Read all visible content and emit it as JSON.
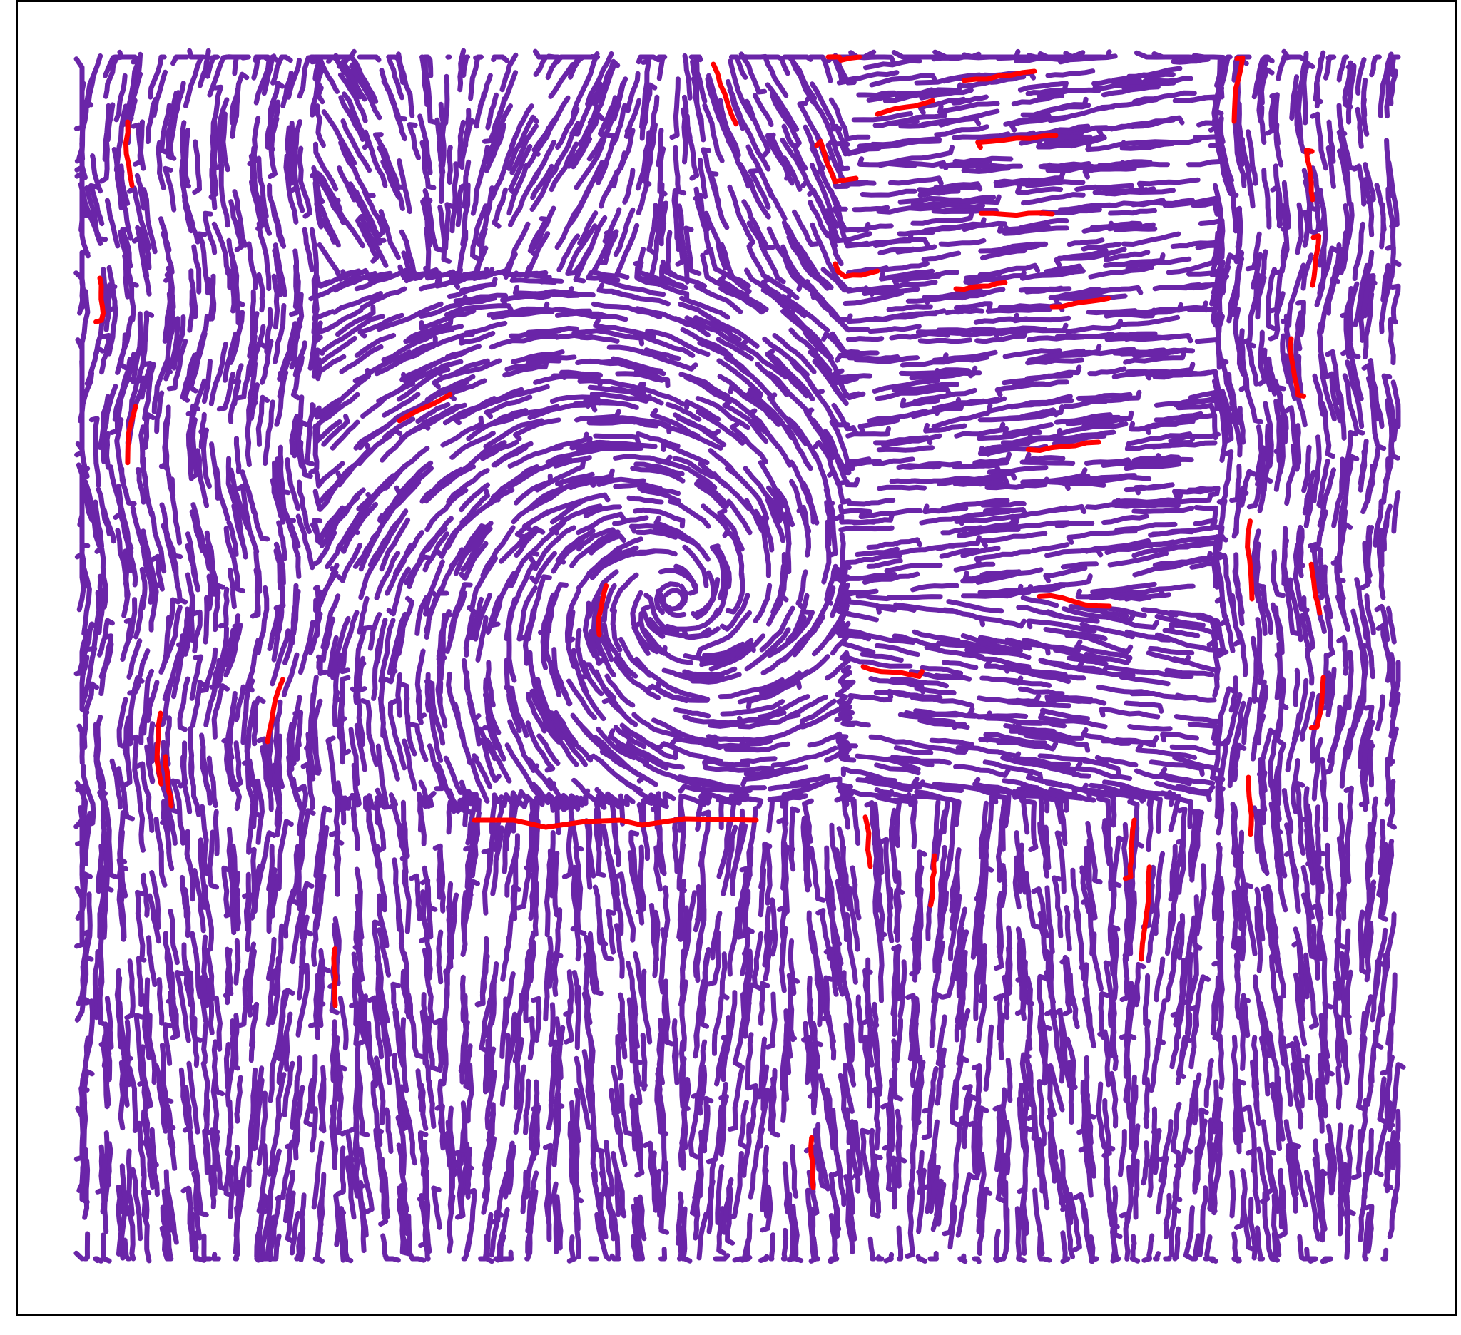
{
  "colors": {
    "primary_stroke": "#6a25a8",
    "highlight_stroke": "#ff0000",
    "frame": "#000000",
    "background": "#ffffff"
  }
}
